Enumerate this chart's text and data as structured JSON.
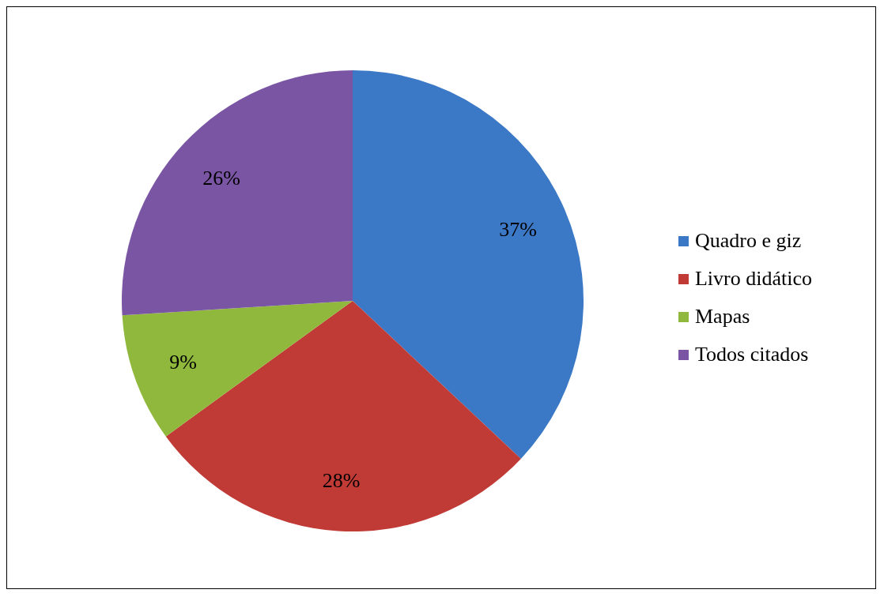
{
  "chart_data": {
    "type": "pie",
    "categories": [
      "Quadro e giz",
      "Livro didático",
      "Mapas",
      "Todos citados"
    ],
    "values": [
      37,
      28,
      9,
      26
    ],
    "colors": [
      "#3b78c6",
      "#c03a36",
      "#8fb83c",
      "#7a55a3"
    ],
    "value_labels": [
      "37%",
      "28%",
      "9%",
      "26%"
    ],
    "legend": "right"
  }
}
